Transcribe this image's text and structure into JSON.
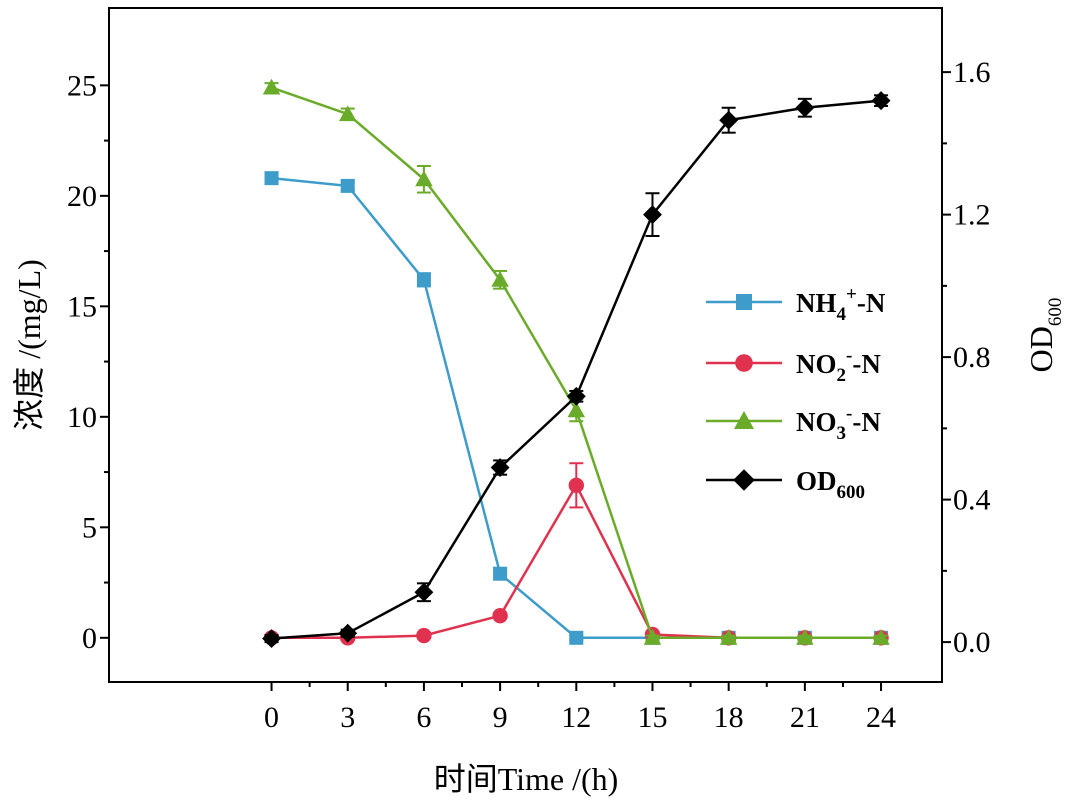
{
  "chart_data": {
    "type": "line",
    "title": "",
    "xlabel": "时间Time /(h)",
    "ylabel_left": "浓度 /(mg/L)",
    "ylabel_right": {
      "base": "OD",
      "sub": "600"
    },
    "x": [
      0,
      3,
      6,
      9,
      12,
      15,
      18,
      21,
      24
    ],
    "xlim": [
      -6.4,
      26.4
    ],
    "ylim_left": [
      -2,
      28.5
    ],
    "ylim_right": [
      -0.112,
      1.78
    ],
    "left_ticks": [
      0,
      5,
      10,
      15,
      20,
      25
    ],
    "right_ticks": [
      0.0,
      0.4,
      0.8,
      1.2,
      1.6
    ],
    "right_tick_labels": [
      "0.0",
      "0.4",
      "0.8",
      "1.2",
      "1.6"
    ],
    "grid": false,
    "legend_position": "center-right",
    "series": [
      {
        "name": "NH4+-N",
        "label": {
          "base": "NH",
          "sub": "4",
          "sup": "+",
          "rest": "-N"
        },
        "axis": "left",
        "color": "#3d9cca",
        "marker": "square",
        "values": [
          20.8,
          20.45,
          16.2,
          2.9,
          0.0,
          0.0,
          0.0,
          0.0,
          0.0
        ],
        "errors": [
          0.25,
          0.2,
          0.3,
          0.25,
          0.1,
          0.1,
          0.1,
          0.1,
          0.1
        ]
      },
      {
        "name": "NO2--N",
        "label": {
          "base": "NO",
          "sub": "2",
          "sup": "-",
          "rest": "-N"
        },
        "axis": "left",
        "color": "#e0324e",
        "marker": "circle",
        "values": [
          0.0,
          0.0,
          0.1,
          1.0,
          6.9,
          0.15,
          0.0,
          0.0,
          0.0
        ],
        "errors": [
          0.1,
          0.1,
          0.1,
          0.1,
          1.0,
          0.1,
          0.1,
          0.1,
          0.1
        ]
      },
      {
        "name": "NO3--N",
        "label": {
          "base": "NO",
          "sub": "3",
          "sup": "-",
          "rest": "-N"
        },
        "axis": "left",
        "color": "#6aab2a",
        "marker": "triangle",
        "values": [
          24.9,
          23.7,
          20.75,
          16.2,
          10.3,
          0.0,
          0.0,
          0.0,
          0.0
        ],
        "errors": [
          0.2,
          0.25,
          0.6,
          0.4,
          0.5,
          0.1,
          0.1,
          0.1,
          0.1
        ]
      },
      {
        "name": "OD600",
        "label": {
          "base": "OD",
          "sub": "600",
          "sup": "",
          "rest": ""
        },
        "axis": "right",
        "color": "#000000",
        "marker": "diamond",
        "values": [
          0.01,
          0.025,
          0.14,
          0.49,
          0.69,
          1.2,
          1.465,
          1.5,
          1.52
        ],
        "errors": [
          0.01,
          0.01,
          0.025,
          0.02,
          0.015,
          0.06,
          0.035,
          0.025,
          0.015
        ]
      }
    ]
  }
}
